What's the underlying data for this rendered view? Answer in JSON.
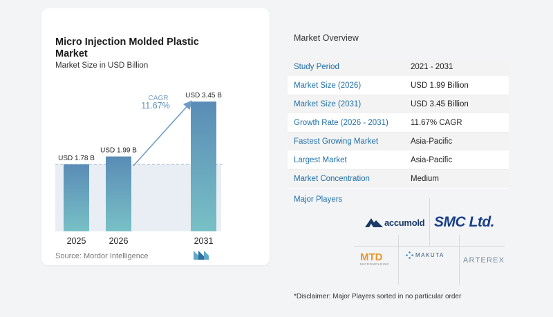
{
  "chart_data": {
    "type": "bar",
    "title": "Micro Injection Molded Plastic Market",
    "subtitle": "Market Size in USD Billion",
    "categories": [
      "2025",
      "2026",
      "2031"
    ],
    "values": [
      1.78,
      1.99,
      3.45
    ],
    "value_labels": [
      "USD 1.78 B",
      "USD 1.99 B",
      "USD 3.45 B"
    ],
    "bar_color": "#5b8db8",
    "cagr": {
      "label": "CAGR",
      "value": "11.67%"
    },
    "ylim": [
      0,
      3.45
    ],
    "source": "Source:  Mordor Intelligence"
  },
  "overview": {
    "title": "Market Overview",
    "rows": [
      {
        "label": "Study Period",
        "value": "2021 - 2031"
      },
      {
        "label": "Market Size (2026)",
        "value": "USD 1.99 Billion"
      },
      {
        "label": "Market Size (2031)",
        "value": "USD 3.45 Billion"
      },
      {
        "label": "Growth Rate (2026 - 2031)",
        "value": "11.67% CAGR"
      },
      {
        "label": "Fastest Growing Market",
        "value": "Asia-Pacific"
      },
      {
        "label": "Largest Market",
        "value": "Asia-Pacific"
      },
      {
        "label": "Market Concentration",
        "value": "Medium"
      }
    ]
  },
  "players": {
    "title": "Major Players",
    "accumold": "accumold",
    "smc": "SMC Ltd.",
    "mtd": "MTD",
    "mtd_sub": "MICROMOLDING",
    "makuta": "MAKUTA",
    "arterex": "ARTEREX"
  },
  "disclaimer": "*Disclaimer: Major Players sorted in no particular order"
}
